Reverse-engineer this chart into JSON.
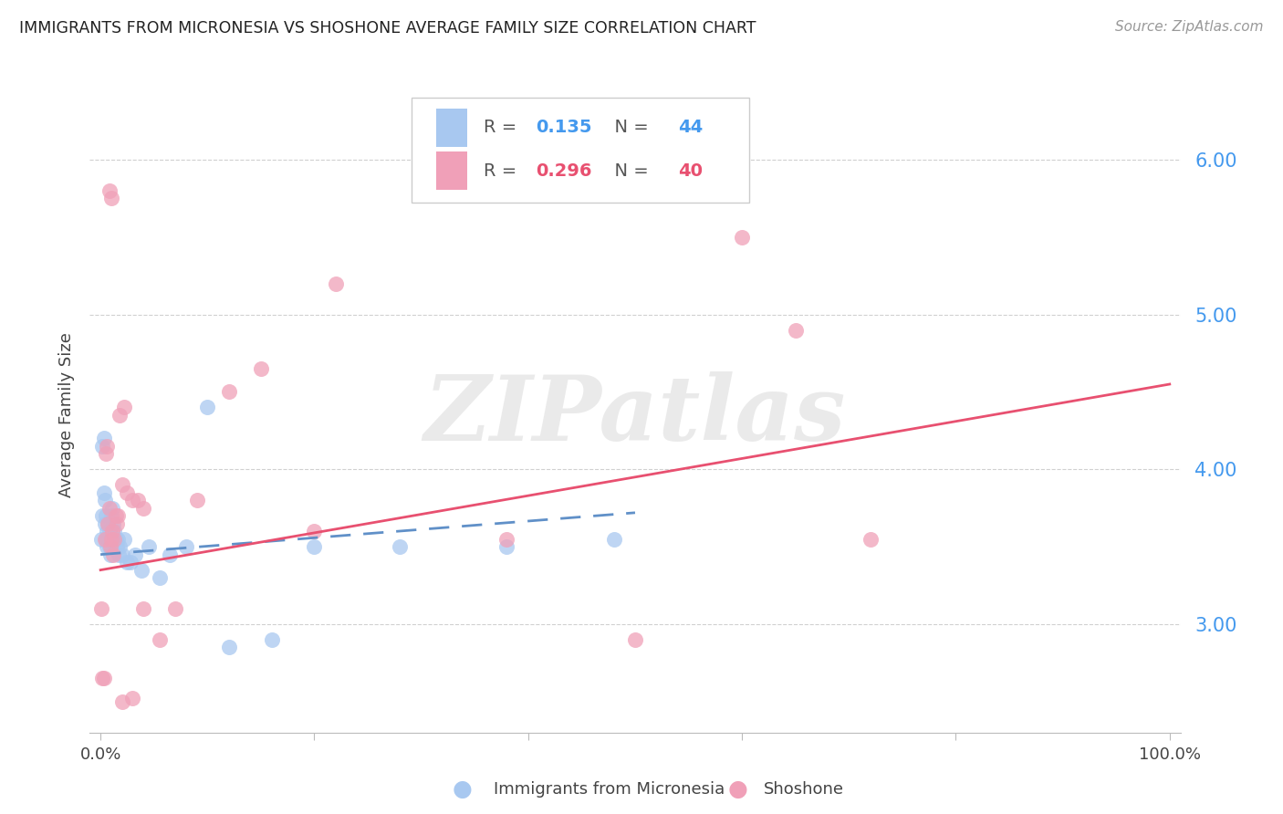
{
  "title": "IMMIGRANTS FROM MICRONESIA VS SHOSHONE AVERAGE FAMILY SIZE CORRELATION CHART",
  "source": "Source: ZipAtlas.com",
  "ylabel": "Average Family Size",
  "ylim": [
    2.3,
    6.4
  ],
  "xlim": [
    -0.01,
    1.01
  ],
  "yticks": [
    3.0,
    4.0,
    5.0,
    6.0
  ],
  "xticks": [
    0.0,
    0.2,
    0.4,
    0.6,
    0.8,
    1.0
  ],
  "xtick_labels": [
    "0.0%",
    "",
    "",
    "",
    "",
    "100.0%"
  ],
  "color_blue": "#a8c8f0",
  "color_pink": "#f0a0b8",
  "color_line_blue": "#6090c8",
  "color_line_pink": "#e85070",
  "watermark": "ZIPatlas",
  "background_color": "#ffffff",
  "grid_color": "#d0d0d0",
  "ytick_color": "#4499ee",
  "blue_R": "0.135",
  "blue_N": "44",
  "pink_R": "0.296",
  "pink_N": "40",
  "blue_points_x": [
    0.001,
    0.002,
    0.002,
    0.003,
    0.003,
    0.004,
    0.004,
    0.005,
    0.005,
    0.006,
    0.006,
    0.007,
    0.007,
    0.008,
    0.008,
    0.009,
    0.009,
    0.01,
    0.01,
    0.011,
    0.012,
    0.013,
    0.014,
    0.015,
    0.016,
    0.017,
    0.018,
    0.02,
    0.022,
    0.025,
    0.028,
    0.032,
    0.038,
    0.045,
    0.055,
    0.065,
    0.08,
    0.1,
    0.12,
    0.16,
    0.2,
    0.28,
    0.38,
    0.48
  ],
  "blue_points_y": [
    3.55,
    3.7,
    4.15,
    4.2,
    3.85,
    3.65,
    3.8,
    3.55,
    3.7,
    3.6,
    3.5,
    3.55,
    3.65,
    3.5,
    3.6,
    3.55,
    3.45,
    3.5,
    3.7,
    3.75,
    3.65,
    3.6,
    3.55,
    3.5,
    3.55,
    3.45,
    3.5,
    3.45,
    3.55,
    3.4,
    3.4,
    3.45,
    3.35,
    3.5,
    3.3,
    3.45,
    3.5,
    4.4,
    2.85,
    2.9,
    3.5,
    3.5,
    3.5,
    3.55
  ],
  "pink_points_x": [
    0.001,
    0.002,
    0.003,
    0.004,
    0.005,
    0.006,
    0.007,
    0.008,
    0.009,
    0.01,
    0.011,
    0.012,
    0.013,
    0.014,
    0.015,
    0.016,
    0.018,
    0.02,
    0.022,
    0.025,
    0.03,
    0.035,
    0.04,
    0.055,
    0.07,
    0.09,
    0.12,
    0.15,
    0.2,
    0.22,
    0.38,
    0.6,
    0.65,
    0.72,
    0.008,
    0.01,
    0.02,
    0.03,
    0.04,
    0.5
  ],
  "pink_points_y": [
    3.1,
    2.65,
    2.65,
    3.55,
    4.1,
    4.15,
    3.65,
    3.75,
    3.5,
    3.55,
    3.6,
    3.45,
    3.55,
    3.7,
    3.65,
    3.7,
    4.35,
    3.9,
    4.4,
    3.85,
    3.8,
    3.8,
    3.1,
    2.9,
    3.1,
    3.8,
    4.5,
    4.65,
    3.6,
    5.2,
    3.55,
    5.5,
    4.9,
    3.55,
    5.8,
    5.75,
    2.5,
    2.52,
    3.75,
    2.9
  ],
  "blue_line_x": [
    0.0,
    0.5
  ],
  "blue_line_y": [
    3.45,
    3.72
  ],
  "pink_line_x": [
    0.0,
    1.0
  ],
  "pink_line_y": [
    3.35,
    4.55
  ]
}
